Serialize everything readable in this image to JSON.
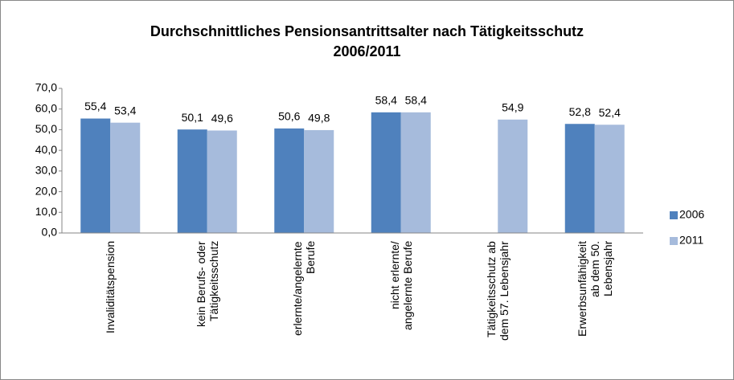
{
  "chart_data": {
    "type": "bar",
    "title": "Durchschnittliches Pensionsantrittsalter nach Tätigkeitsschutz\n2006/2011",
    "categories": [
      "Invaliditätspension",
      "kein Berufs- oder\nTätigkeitsschutz",
      "erlernte/angelernte\nBerufe",
      "nicht erlernte/\nangelernte Berufe",
      "Tätigkeitsschutz ab\ndem 57. Lebensjahr",
      "Erwerbsunfähigkeit\nab dem 50.\nLebensjahr"
    ],
    "series": [
      {
        "name": "2006",
        "color": "#4f81bd",
        "values": [
          55.4,
          50.1,
          50.6,
          58.4,
          null,
          52.8
        ],
        "value_labels": [
          "55,4",
          "50,1",
          "50,6",
          "58,4",
          null,
          "52,8"
        ]
      },
      {
        "name": "2011",
        "color": "#a6bbdc",
        "values": [
          53.4,
          49.6,
          49.8,
          58.4,
          54.9,
          52.4
        ],
        "value_labels": [
          "53,4",
          "49,6",
          "49,8",
          "58,4",
          "54,9",
          "52,4"
        ]
      }
    ],
    "ylim": [
      0,
      70
    ],
    "yticks": [
      {
        "value": 0,
        "label": "0,0"
      },
      {
        "value": 10,
        "label": "10,0"
      },
      {
        "value": 20,
        "label": "20,0"
      },
      {
        "value": 30,
        "label": "30,0"
      },
      {
        "value": 40,
        "label": "40,0"
      },
      {
        "value": 50,
        "label": "50,0"
      },
      {
        "value": 60,
        "label": "60,0"
      },
      {
        "value": 70,
        "label": "70,0"
      }
    ],
    "grid": false,
    "legend": "right"
  }
}
